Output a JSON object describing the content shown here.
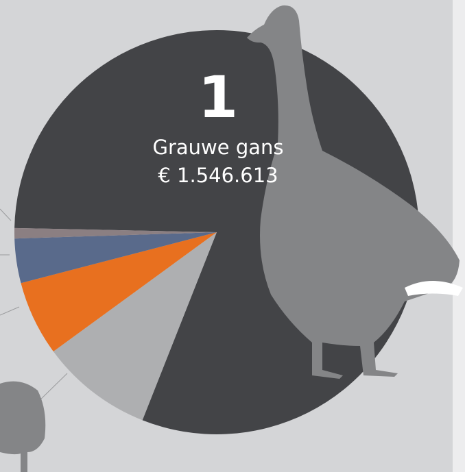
{
  "chart_data": {
    "type": "pie",
    "rank": "1",
    "categories": [
      "Grauwe gans",
      null,
      null,
      null,
      null
    ],
    "values": [
      1546613,
      172000,
      115000,
      68000,
      16000
    ],
    "value_labels": [
      "€ 1.546.613",
      null,
      null,
      null,
      null
    ],
    "colors": [
      "#434447",
      "#aeafb1",
      "#e8701f",
      "#596a8b",
      "#8b7f82"
    ]
  }
}
